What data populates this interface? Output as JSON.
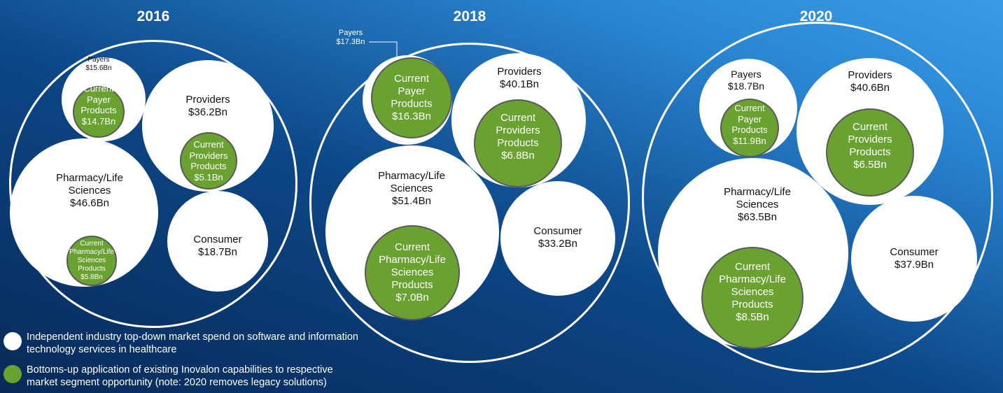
{
  "panels": [
    {
      "year": "2016",
      "segments": [
        {
          "name": "Payers",
          "amount": "$15.6Bn",
          "current": {
            "name": "Current Payer Products",
            "amount": "$14.7Bn"
          }
        },
        {
          "name": "Providers",
          "amount": "$36.2Bn",
          "current": {
            "name": "Current Providers Products",
            "amount": "$5.1Bn"
          }
        },
        {
          "name": "Pharmacy/Life Sciences",
          "amount": "$46.6Bn",
          "current": {
            "name": "Current Pharmacy/Life Sciences Products",
            "amount": "$5.8Bn"
          }
        },
        {
          "name": "Consumer",
          "amount": "$18.7Bn"
        }
      ]
    },
    {
      "year": "2018",
      "segments": [
        {
          "name": "Payers",
          "amount": "$17.3Bn",
          "current": {
            "name": "Current Payer Products",
            "amount": "$16.3Bn"
          }
        },
        {
          "name": "Providers",
          "amount": "$40.1Bn",
          "current": {
            "name": "Current Providers Products",
            "amount": "$6.8Bn"
          }
        },
        {
          "name": "Pharmacy/Life Sciences",
          "amount": "$51.4Bn",
          "current": {
            "name": "Current Pharmacy/Life Sciences Products",
            "amount": "$7.0Bn"
          }
        },
        {
          "name": "Consumer",
          "amount": "$33.2Bn"
        }
      ]
    },
    {
      "year": "2020",
      "segments": [
        {
          "name": "Payers",
          "amount": "$18.7Bn",
          "current": {
            "name": "Current Payer Products",
            "amount": "$11.9Bn"
          }
        },
        {
          "name": "Providers",
          "amount": "$40.6Bn",
          "current": {
            "name": "Current Providers Products",
            "amount": "$6.5Bn"
          }
        },
        {
          "name": "Pharmacy/Life Sciences",
          "amount": "$63.5Bn",
          "current": {
            "name": "Current Pharmacy/Life Sciences Products",
            "amount": "$8.5Bn"
          }
        },
        {
          "name": "Consumer",
          "amount": "$37.9Bn"
        }
      ]
    }
  ],
  "legend": [
    {
      "text": "Independent industry top-down market spend on software and information technology services in healthcare"
    },
    {
      "text": "Bottoms-up application of existing Inovalon capabilities to respective market segment opportunity (note: 2020 removes legacy solutions)"
    }
  ]
}
